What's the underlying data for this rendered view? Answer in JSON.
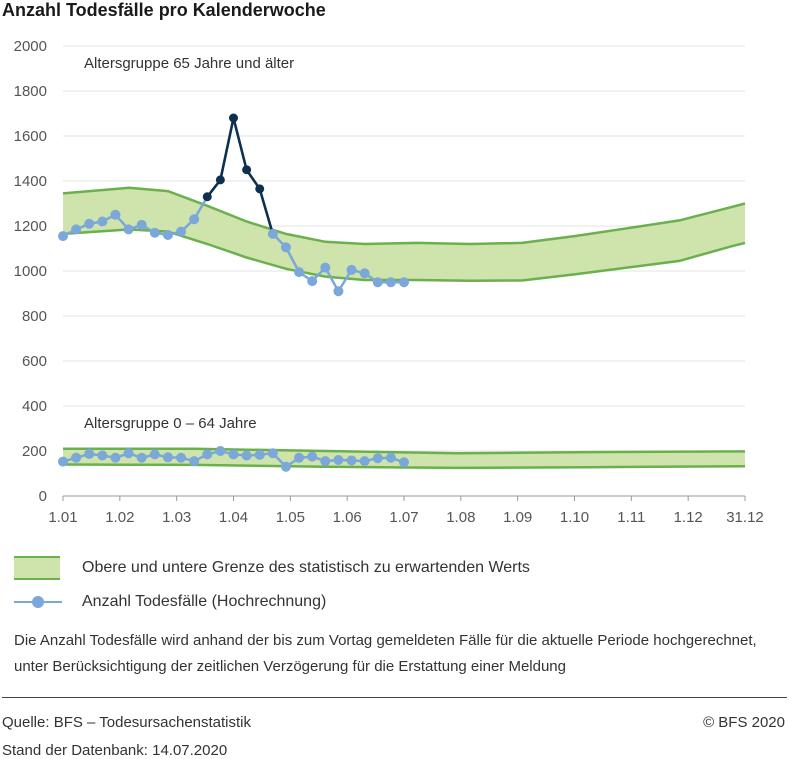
{
  "title": "Anzahl Todesfälle pro Kalenderwoche",
  "legend": {
    "band_label": "Obere und untere Grenze des statistisch zu erwartenden Werts",
    "line_label": "Anzahl Todesfälle (Hochrechnung)"
  },
  "note": "Die Anzahl Todesfälle wird anhand der bis zum Vortag gemeldeten Fälle für die aktuelle Periode hochgerechnet, unter Berücksichtigung der zeitlichen Verzögerung für die Erstattung einer Meldung",
  "footer": {
    "source": "Quelle: BFS – Todesursachenstatistik",
    "stand": "Stand der Datenbank: 14.07.2020",
    "copyright": "© BFS 2020"
  },
  "colors": {
    "band_fill": "#cfe3ac",
    "band_line": "#6ab04c",
    "line": "#7ba7d9",
    "excess": "#0f2f4f",
    "grid": "#e3e3e3"
  },
  "chart_data": {
    "type": "line",
    "x_ticks": [
      "1.01",
      "1.02",
      "1.03",
      "1.04",
      "1.05",
      "1.06",
      "1.07",
      "1.08",
      "1.09",
      "1.10",
      "1.11",
      "1.12",
      "31.12"
    ],
    "y_ticks": [
      "0",
      "200",
      "400",
      "600",
      "800",
      "1000",
      "1200",
      "1400",
      "1600",
      "1800",
      "2000"
    ],
    "ylim": [
      0,
      2000
    ],
    "x_unit": "Kalenderwoche",
    "groups": [
      {
        "name": "Altersgruppe 65 Jahre und älter",
        "upper": [
          [
            0,
            1345
          ],
          [
            5,
            1370
          ],
          [
            8,
            1355
          ],
          [
            11,
            1290
          ],
          [
            14,
            1220
          ],
          [
            17,
            1165
          ],
          [
            20,
            1130
          ],
          [
            23,
            1120
          ],
          [
            27,
            1125
          ],
          [
            31,
            1120
          ],
          [
            35,
            1125
          ],
          [
            39,
            1155
          ],
          [
            43,
            1190
          ],
          [
            47,
            1225
          ],
          [
            51,
            1285
          ],
          [
            52,
            1300
          ]
        ],
        "lower": [
          [
            0,
            1165
          ],
          [
            5,
            1185
          ],
          [
            8,
            1175
          ],
          [
            11,
            1120
          ],
          [
            14,
            1060
          ],
          [
            17,
            1010
          ],
          [
            20,
            975
          ],
          [
            23,
            960
          ],
          [
            27,
            960
          ],
          [
            31,
            957
          ],
          [
            35,
            958
          ],
          [
            39,
            985
          ],
          [
            43,
            1015
          ],
          [
            47,
            1045
          ],
          [
            51,
            1110
          ],
          [
            52,
            1125
          ]
        ],
        "points": [
          [
            0,
            1155
          ],
          [
            1,
            1185
          ],
          [
            2,
            1210
          ],
          [
            3,
            1220
          ],
          [
            4,
            1250
          ],
          [
            5,
            1185
          ],
          [
            6,
            1205
          ],
          [
            7,
            1170
          ],
          [
            8,
            1160
          ],
          [
            9,
            1175
          ],
          [
            10,
            1230
          ],
          [
            11,
            1330
          ],
          [
            12,
            1405
          ],
          [
            13,
            1680
          ],
          [
            14,
            1450
          ],
          [
            15,
            1365
          ],
          [
            16,
            1165
          ],
          [
            17,
            1105
          ],
          [
            18,
            995
          ],
          [
            19,
            955
          ],
          [
            20,
            1015
          ],
          [
            21,
            910
          ],
          [
            22,
            1005
          ],
          [
            23,
            990
          ],
          [
            24,
            950
          ],
          [
            25,
            950
          ],
          [
            26,
            950
          ]
        ],
        "excess_points": [
          [
            11,
            1330
          ],
          [
            12,
            1405
          ],
          [
            13,
            1680
          ],
          [
            14,
            1450
          ],
          [
            15,
            1365
          ]
        ]
      },
      {
        "name": "Altersgruppe 0 – 64 Jahre",
        "upper": [
          [
            0,
            210
          ],
          [
            10,
            210
          ],
          [
            20,
            200
          ],
          [
            30,
            190
          ],
          [
            40,
            195
          ],
          [
            52,
            198
          ]
        ],
        "lower": [
          [
            0,
            140
          ],
          [
            10,
            138
          ],
          [
            20,
            130
          ],
          [
            30,
            125
          ],
          [
            40,
            128
          ],
          [
            52,
            132
          ]
        ],
        "points": [
          [
            0,
            153
          ],
          [
            1,
            170
          ],
          [
            2,
            187
          ],
          [
            3,
            180
          ],
          [
            4,
            170
          ],
          [
            5,
            190
          ],
          [
            6,
            170
          ],
          [
            7,
            185
          ],
          [
            8,
            172
          ],
          [
            9,
            170
          ],
          [
            10,
            155
          ],
          [
            11,
            185
          ],
          [
            12,
            200
          ],
          [
            13,
            185
          ],
          [
            14,
            180
          ],
          [
            15,
            183
          ],
          [
            16,
            190
          ],
          [
            17,
            130
          ],
          [
            18,
            170
          ],
          [
            19,
            175
          ],
          [
            20,
            155
          ],
          [
            21,
            160
          ],
          [
            22,
            158
          ],
          [
            23,
            155
          ],
          [
            24,
            168
          ],
          [
            25,
            170
          ],
          [
            26,
            150
          ]
        ]
      }
    ]
  }
}
